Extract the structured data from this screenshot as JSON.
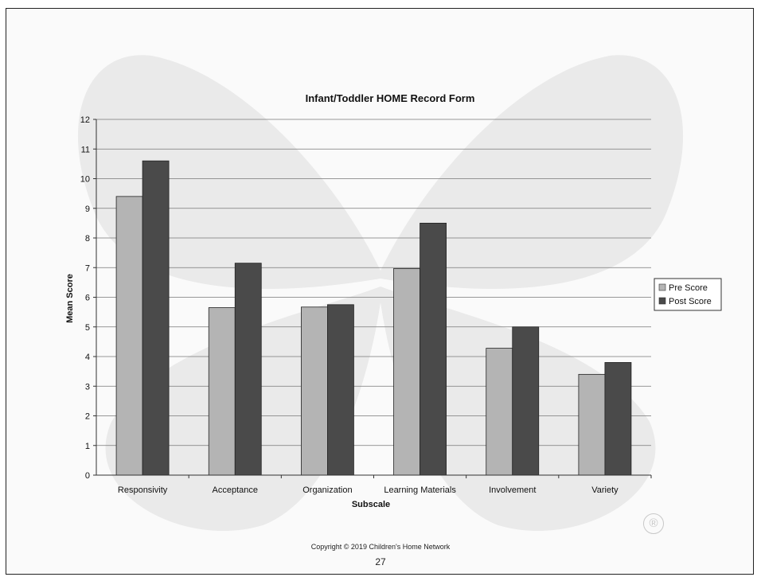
{
  "footer": {
    "copyright": "Copyright © 2019 Children's Home Network",
    "page_number": "27",
    "registered_mark": "®"
  },
  "colors": {
    "pre": "#b4b4b4",
    "post": "#4a4a4a",
    "watermark": "#dcdcdc"
  },
  "chart_data": {
    "type": "bar",
    "title": "Infant/Toddler HOME Record Form",
    "xlabel": "Subscale",
    "ylabel": "Mean Score",
    "ylim": [
      0,
      12
    ],
    "yticks": [
      0,
      1,
      2,
      3,
      4,
      5,
      6,
      7,
      8,
      9,
      10,
      11,
      12
    ],
    "grid": true,
    "legend_position": "right",
    "categories": [
      "Responsivity",
      "Acceptance",
      "Organization",
      "Learning Materials",
      "Involvement",
      "Variety"
    ],
    "series": [
      {
        "name": "Pre Score",
        "values": [
          9.4,
          5.65,
          5.67,
          6.97,
          4.28,
          3.4
        ]
      },
      {
        "name": "Post Score",
        "values": [
          10.6,
          7.15,
          5.75,
          8.5,
          5.0,
          3.8
        ]
      }
    ]
  }
}
